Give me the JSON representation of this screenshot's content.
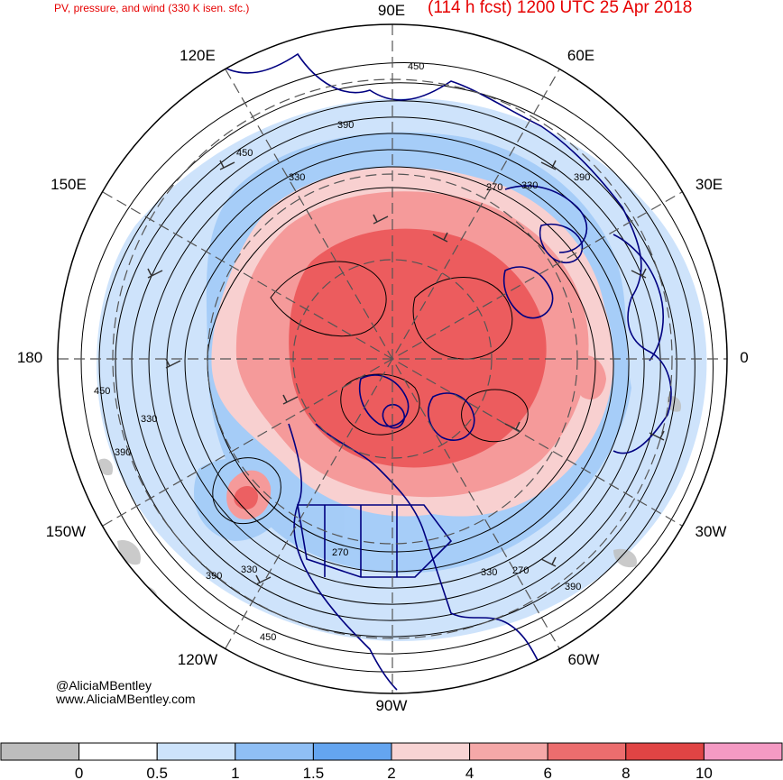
{
  "header": {
    "subtitle": "PV, pressure, and wind (330 K isen. sfc.)",
    "title": "(114 h fcst) 1200 UTC 25 Apr 2018"
  },
  "credit": {
    "handle": "@AliciaMBentley",
    "website": "www.AliciaMBentley.com"
  },
  "map": {
    "projection": "north polar stereographic",
    "longitude_labels": {
      "n90e": "90E",
      "n60e": "60E",
      "n30e": "30E",
      "n0": "0",
      "n30w": "30W",
      "n60w": "60W",
      "n90w": "90W",
      "n120w": "120W",
      "n150w": "150W",
      "n180": "180",
      "n150e": "150E",
      "n120e": "120E"
    },
    "contour_labels": [
      "450",
      "390",
      "330",
      "270",
      "450",
      "390",
      "330",
      "270",
      "330",
      "390",
      "450",
      "390",
      "330",
      "450",
      "330",
      "390",
      "270"
    ],
    "colors": {
      "coastline": "#000080",
      "pv_high": "#e8474a",
      "pv_mid": "#f59a9a",
      "pv_low": "#f8d0d0",
      "pv_blue": "#9cc7f7",
      "pv_lightblue": "#c9e0fb",
      "gray": "#bdbdbd"
    }
  },
  "colorbar": {
    "bins": [
      {
        "color": "#bdbdbd"
      },
      {
        "color": "#ffffff"
      },
      {
        "color": "#cde3fb"
      },
      {
        "color": "#8fbff5"
      },
      {
        "color": "#64a5f0"
      },
      {
        "color": "#f8d4d4"
      },
      {
        "color": "#f5a8a8"
      },
      {
        "color": "#ec6d6e"
      },
      {
        "color": "#e04444"
      },
      {
        "color": "#f49ac3"
      }
    ],
    "tick_labels": [
      "0",
      "0.5",
      "1",
      "1.5",
      "2",
      "4",
      "6",
      "8",
      "10"
    ]
  }
}
